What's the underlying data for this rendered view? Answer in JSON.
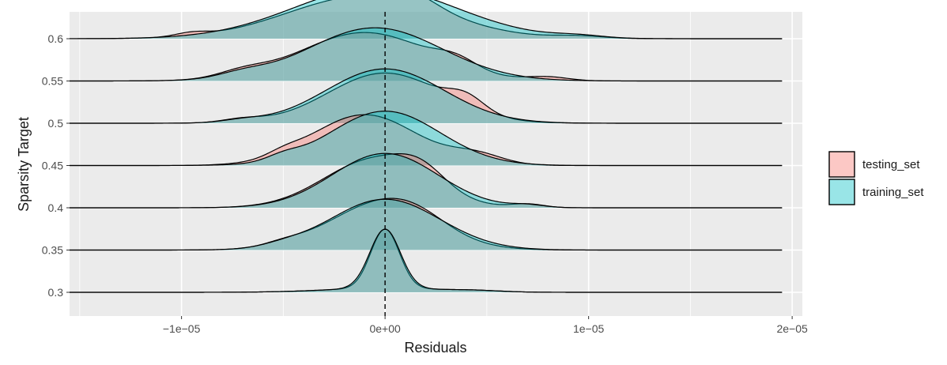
{
  "chart_data": {
    "type": "ridgeline",
    "title": "",
    "xlabel": "Residuals",
    "ylabel": "Sparsity Target",
    "xlim": [
      -1.55e-05,
      2.05e-05
    ],
    "x_ticks": [
      {
        "value": -1e-05,
        "label": "−1e−05"
      },
      {
        "value": 0,
        "label": "0e+00"
      },
      {
        "value": 1e-05,
        "label": "1e−05"
      },
      {
        "value": 2e-05,
        "label": "2e−05"
      }
    ],
    "categories": [
      "0.3",
      "0.35",
      "0.4",
      "0.45",
      "0.5",
      "0.55",
      "0.6"
    ],
    "reference_line": {
      "x": 0,
      "style": "dashed"
    },
    "density_support": [
      -1.55e-05,
      1.95e-05
    ],
    "series": [
      {
        "name": "testing_set",
        "color": "#f8766d",
        "ridges": [
          {
            "category": "0.3",
            "components": [
              {
                "mean": 0.0,
                "sd": 7e-07,
                "w": 1.0
              },
              {
                "mean": 0.0,
                "sd": 2.8e-06,
                "w": 0.07
              },
              {
                "mean": 4.5e-06,
                "sd": 1.2e-06,
                "w": 0.02
              }
            ]
          },
          {
            "category": "0.35",
            "components": [
              {
                "mean": -2e-07,
                "sd": 2.6e-06,
                "w": 0.78
              },
              {
                "mean": 1.5e-06,
                "sd": 1.5e-06,
                "w": 0.15
              },
              {
                "mean": -5e-06,
                "sd": 1e-06,
                "w": 0.06
              }
            ]
          },
          {
            "category": "0.4",
            "components": [
              {
                "mean": -5e-07,
                "sd": 2.5e-06,
                "w": 0.82
              },
              {
                "mean": 1.8e-06,
                "sd": 1.2e-06,
                "w": 0.28
              },
              {
                "mean": 7e-06,
                "sd": 8e-07,
                "w": 0.06
              }
            ]
          },
          {
            "category": "0.45",
            "components": [
              {
                "mean": -1e-06,
                "sd": 2.6e-06,
                "w": 0.86
              },
              {
                "mean": 4.5e-06,
                "sd": 1.3e-06,
                "w": 0.16
              },
              {
                "mean": -5e-06,
                "sd": 8e-07,
                "w": 0.07
              }
            ]
          },
          {
            "category": "0.5",
            "components": [
              {
                "mean": 0.0,
                "sd": 2.8e-06,
                "w": 0.85
              },
              {
                "mean": 4e-06,
                "sd": 9e-07,
                "w": 0.22
              },
              {
                "mean": -7e-06,
                "sd": 1e-06,
                "w": 0.06
              }
            ]
          },
          {
            "category": "0.55",
            "components": [
              {
                "mean": -1e-06,
                "sd": 3.2e-06,
                "w": 0.82
              },
              {
                "mean": 3.5e-06,
                "sd": 1e-06,
                "w": 0.16
              },
              {
                "mean": -7e-06,
                "sd": 1.2e-06,
                "w": 0.1
              },
              {
                "mean": 8e-06,
                "sd": 1e-06,
                "w": 0.06
              }
            ]
          },
          {
            "category": "0.6",
            "components": [
              {
                "mean": -1e-06,
                "sd": 3.8e-06,
                "w": 0.72
              },
              {
                "mean": 1.2e-06,
                "sd": 1.3e-06,
                "w": 0.2
              },
              {
                "mean": -9.5e-06,
                "sd": 8e-07,
                "w": 0.06
              },
              {
                "mean": 9.5e-06,
                "sd": 1.2e-06,
                "w": 0.04
              }
            ]
          }
        ]
      },
      {
        "name": "training_set",
        "color": "#00bfc4",
        "ridges": [
          {
            "category": "0.3",
            "components": [
              {
                "mean": 0.0,
                "sd": 7.5e-07,
                "w": 1.0
              },
              {
                "mean": 0.0,
                "sd": 2.8e-06,
                "w": 0.07
              },
              {
                "mean": 4.5e-06,
                "sd": 1.2e-06,
                "w": 0.02
              }
            ]
          },
          {
            "category": "0.35",
            "components": [
              {
                "mean": 0.0,
                "sd": 2.7e-06,
                "w": 0.86
              },
              {
                "mean": -5e-06,
                "sd": 1e-06,
                "w": 0.04
              }
            ]
          },
          {
            "category": "0.4",
            "components": [
              {
                "mean": 0.0,
                "sd": 2.6e-06,
                "w": 0.92
              },
              {
                "mean": 7e-06,
                "sd": 8e-07,
                "w": 0.04
              }
            ]
          },
          {
            "category": "0.45",
            "components": [
              {
                "mean": 0.0,
                "sd": 2.7e-06,
                "w": 0.92
              },
              {
                "mean": -5e-06,
                "sd": 8e-07,
                "w": 0.08
              }
            ]
          },
          {
            "category": "0.5",
            "components": [
              {
                "mean": 0.0,
                "sd": 2.9e-06,
                "w": 0.92
              },
              {
                "mean": -7e-06,
                "sd": 1e-06,
                "w": 0.04
              }
            ]
          },
          {
            "category": "0.55",
            "components": [
              {
                "mean": -5e-07,
                "sd": 3.3e-06,
                "w": 0.9
              },
              {
                "mean": -7e-06,
                "sd": 1.2e-06,
                "w": 0.08
              }
            ]
          },
          {
            "category": "0.6",
            "components": [
              {
                "mean": -5e-07,
                "sd": 4e-06,
                "w": 0.86
              },
              {
                "mean": 9.5e-06,
                "sd": 1.2e-06,
                "w": 0.04
              }
            ]
          }
        ]
      }
    ],
    "legend": {
      "position": "right",
      "items": [
        {
          "label": "testing_set",
          "color": "#f8766d"
        },
        {
          "label": "training_set",
          "color": "#00bfc4"
        }
      ]
    },
    "grid": true,
    "panel_background": "#ebebeb"
  }
}
